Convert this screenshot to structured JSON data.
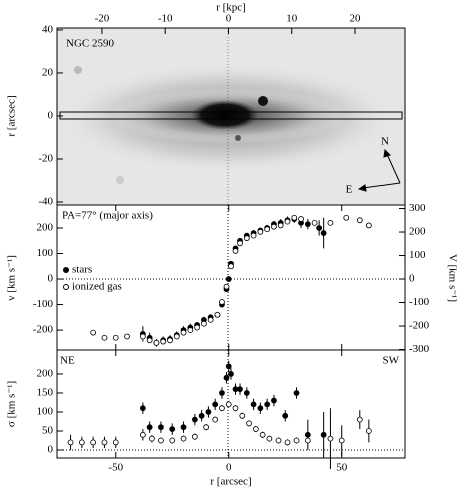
{
  "chart_data": [
    {
      "type": "image",
      "title": "NGC 2590",
      "xlabel": "r [kpc]",
      "ylabel": "r [arcsec]",
      "xlim": [
        -27.1,
        27.9
      ],
      "xticks": [
        -20,
        -10,
        0,
        10,
        20
      ],
      "ylim": [
        -41.4,
        40.9
      ],
      "yticks": [
        -40,
        -20,
        0,
        20,
        40
      ],
      "annotations": [
        "N",
        "E"
      ]
    },
    {
      "type": "scatter",
      "ylabel": "v [km s⁻¹]",
      "y2label": "V [km s⁻¹]",
      "ylim": [
        -278,
        290
      ],
      "yticks": [
        -200,
        -100,
        0,
        100,
        200
      ],
      "y2lim": [
        -302,
        315
      ],
      "y2ticks": [
        -300,
        -200,
        -100,
        0,
        100,
        200,
        300
      ],
      "annotations": [
        "PA=77° (major axis)"
      ],
      "series": [
        {
          "name": "stars",
          "color": "#000000",
          "marker": "filled",
          "x": [
            -38,
            -35,
            -32,
            -29,
            -26,
            -23,
            -20,
            -17,
            -14,
            -11,
            -8,
            -5,
            -3,
            -1,
            0,
            1,
            3,
            5,
            8,
            11,
            14,
            17,
            20,
            23,
            26,
            29,
            32,
            35,
            40,
            42
          ],
          "values": [
            -215,
            -230,
            -250,
            -240,
            -235,
            -220,
            -200,
            -190,
            -180,
            -160,
            -150,
            -140,
            -100,
            -40,
            0,
            60,
            120,
            150,
            170,
            180,
            190,
            200,
            215,
            220,
            230,
            235,
            220,
            215,
            200,
            180
          ],
          "errors": [
            30,
            20,
            15,
            15,
            15,
            15,
            15,
            15,
            12,
            12,
            12,
            10,
            10,
            10,
            10,
            10,
            10,
            10,
            10,
            10,
            10,
            12,
            12,
            15,
            15,
            15,
            20,
            20,
            30,
            60
          ]
        },
        {
          "name": "ionized gas",
          "color": "#000000",
          "marker": "open",
          "x": [
            -60,
            -55,
            -50,
            -45,
            -38,
            -35,
            -32,
            -29,
            -26,
            -23,
            -20,
            -17,
            -14,
            -11,
            -8,
            -5,
            -3,
            -1,
            1,
            3,
            5,
            8,
            11,
            14,
            17,
            20,
            23,
            26,
            29,
            32,
            38,
            45,
            52,
            58,
            62
          ],
          "values": [
            -210,
            -230,
            -230,
            -225,
            -225,
            -240,
            -250,
            -245,
            -240,
            -225,
            -210,
            -200,
            -190,
            -175,
            -160,
            -140,
            -90,
            -30,
            50,
            110,
            140,
            160,
            170,
            185,
            195,
            205,
            210,
            225,
            240,
            235,
            220,
            220,
            240,
            230,
            210
          ]
        }
      ]
    },
    {
      "type": "scatter",
      "xlabel": "r [arcsec]",
      "ylabel": "σ [km s⁻¹]",
      "xlim": [
        -76,
        78
      ],
      "xticks": [
        -50,
        0,
        50
      ],
      "ylim": [
        -21,
        263
      ],
      "yticks": [
        0,
        50,
        100,
        150,
        200
      ],
      "annotations": [
        "NE",
        "SW"
      ],
      "series": [
        {
          "name": "stars",
          "color": "#000000",
          "marker": "filled",
          "x": [
            -38,
            -35,
            -30,
            -25,
            -20,
            -15,
            -12,
            -9,
            -6,
            -3,
            -1,
            0,
            1,
            3,
            5,
            8,
            11,
            14,
            17,
            20,
            25,
            30,
            35,
            42
          ],
          "values": [
            110,
            60,
            60,
            55,
            60,
            80,
            90,
            100,
            120,
            150,
            190,
            220,
            200,
            160,
            160,
            150,
            120,
            110,
            120,
            130,
            90,
            150,
            40,
            40
          ],
          "errors": [
            15,
            15,
            15,
            15,
            15,
            15,
            15,
            15,
            15,
            15,
            15,
            15,
            15,
            15,
            15,
            15,
            15,
            15,
            15,
            15,
            15,
            15,
            40,
            60
          ]
        },
        {
          "name": "ionized gas",
          "color": "#000000",
          "marker": "open",
          "x": [
            -70,
            -65,
            -60,
            -55,
            -50,
            -38,
            -34,
            -30,
            -25,
            -20,
            -15,
            -10,
            -6,
            -3,
            0,
            3,
            6,
            9,
            12,
            15,
            18,
            22,
            26,
            30,
            35,
            45,
            50,
            58,
            62
          ],
          "values": [
            20,
            20,
            20,
            20,
            20,
            40,
            30,
            25,
            25,
            30,
            35,
            60,
            80,
            110,
            120,
            110,
            90,
            70,
            55,
            40,
            30,
            25,
            20,
            25,
            25,
            30,
            25,
            80,
            50
          ],
          "errors": [
            20,
            15,
            15,
            15,
            15,
            15,
            10,
            8,
            8,
            8,
            8,
            8,
            8,
            8,
            8,
            8,
            8,
            8,
            8,
            8,
            8,
            8,
            8,
            8,
            8,
            80,
            40,
            25,
            30
          ]
        }
      ]
    }
  ]
}
